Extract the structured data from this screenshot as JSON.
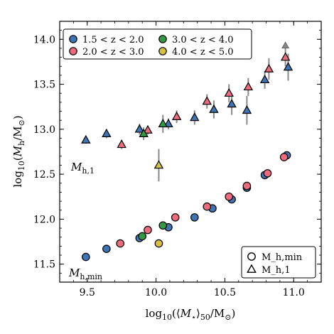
{
  "chart_data": {
    "type": "scatter",
    "title": "",
    "xlabel": "log10(⟨M⋆⟩50/M⊙)",
    "ylabel": "log10(Mh/M⊙)",
    "xlim": [
      9.3,
      11.2
    ],
    "ylim": [
      11.3,
      14.2
    ],
    "xticks": [
      "9.5",
      "10.0",
      "10.5",
      "11.0"
    ],
    "yticks": [
      "11.5",
      "12.0",
      "12.5",
      "13.0",
      "13.5",
      "14.0"
    ],
    "grid": false,
    "colors": {
      "z1": "#3f75b5",
      "z2": "#ee6b7d",
      "z3": "#339944",
      "z4": "#d6c23e",
      "errorbar": "#8a8a8a"
    },
    "annotations": [
      "M_h,1",
      "M_h,min"
    ],
    "legend_redshift": {
      "placement": "top-left",
      "entries": [
        {
          "key": "z1",
          "label": "1.5 < z < 2.0"
        },
        {
          "key": "z3",
          "label": "3.0 < z < 4.0"
        },
        {
          "key": "z2",
          "label": "2.0 < z < 3.0"
        },
        {
          "key": "z4",
          "label": "4.0 < z < 5.0"
        }
      ]
    },
    "legend_marker": {
      "placement": "bottom-right",
      "entries": [
        {
          "marker": "circle",
          "label": "M_h,min"
        },
        {
          "marker": "triangle",
          "label": "M_h,1"
        }
      ]
    },
    "series": [
      {
        "key": "z1",
        "marker": "circle",
        "points": [
          [
            9.49,
            11.58
          ],
          [
            9.64,
            11.67
          ],
          [
            9.88,
            11.79
          ],
          [
            10.09,
            11.91
          ],
          [
            10.28,
            12.02
          ],
          [
            10.41,
            12.12
          ],
          [
            10.55,
            12.22
          ],
          [
            10.66,
            12.35
          ],
          [
            10.79,
            12.49
          ],
          [
            10.95,
            12.71
          ]
        ]
      },
      {
        "key": "z2",
        "marker": "circle",
        "points": [
          [
            9.74,
            11.73
          ],
          [
            9.94,
            11.88
          ],
          [
            10.14,
            12.02
          ],
          [
            10.37,
            12.14
          ],
          [
            10.53,
            12.25
          ],
          [
            10.66,
            12.37
          ],
          [
            10.81,
            12.51
          ],
          [
            10.93,
            12.69
          ]
        ]
      },
      {
        "key": "z3",
        "marker": "circle",
        "points": [
          [
            9.9,
            11.81
          ],
          [
            10.05,
            11.93
          ]
        ]
      },
      {
        "key": "z4",
        "marker": "circle",
        "points": [
          [
            10.02,
            11.73
          ]
        ]
      },
      {
        "key": "z1",
        "marker": "triangle",
        "points": [
          [
            9.49,
            12.88,
            0.04
          ],
          [
            9.64,
            12.95,
            0.05
          ],
          [
            9.88,
            13.0,
            0.06
          ],
          [
            10.09,
            13.06,
            0.06
          ],
          [
            10.28,
            13.13,
            0.08
          ],
          [
            10.42,
            13.22,
            0.1
          ],
          [
            10.55,
            13.28,
            0.12
          ],
          [
            10.66,
            13.21,
            0.16
          ],
          [
            10.79,
            13.55,
            0.1
          ],
          [
            10.96,
            13.69,
            0.15
          ]
        ]
      },
      {
        "key": "z2",
        "marker": "triangle",
        "points": [
          [
            9.75,
            12.83,
            0.05
          ],
          [
            9.94,
            12.99,
            0.05
          ],
          [
            10.15,
            13.14,
            0.07
          ],
          [
            10.37,
            13.31,
            0.08
          ],
          [
            10.53,
            13.4,
            0.1
          ],
          [
            10.67,
            13.47,
            0.1
          ],
          [
            10.82,
            13.67,
            0.12
          ],
          [
            10.94,
            13.8,
            0.1
          ]
        ]
      },
      {
        "key": "z3",
        "marker": "triangle",
        "points": [
          [
            9.91,
            12.95,
            0.07
          ],
          [
            10.05,
            13.06,
            0.1
          ]
        ]
      },
      {
        "key": "z4",
        "marker": "triangle",
        "points": [
          [
            10.02,
            12.6,
            0.18
          ]
        ]
      }
    ],
    "limit_points": [
      {
        "key": "z1",
        "marker": "triangle-up",
        "x": 10.94,
        "y": 13.93
      }
    ]
  }
}
